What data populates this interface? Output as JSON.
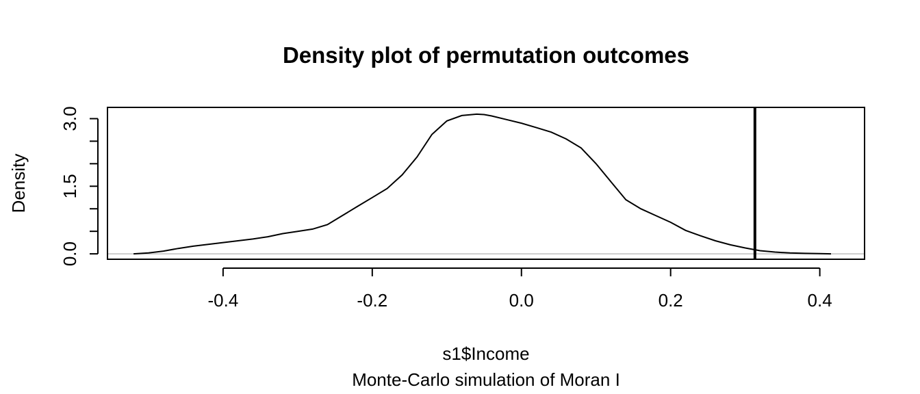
{
  "chart_data": {
    "type": "line",
    "title": "Density plot of permutation outcomes",
    "xlabel": "s1$Income",
    "sublabel": "Monte-Carlo simulation of Moran I",
    "ylabel": "Density",
    "xlim": [
      -0.555,
      0.46
    ],
    "ylim": [
      -0.12,
      3.25
    ],
    "x_ticks": [
      -0.4,
      -0.2,
      0.0,
      0.2,
      0.4
    ],
    "x_tick_labels": [
      "-0.4",
      "-0.2",
      "0.0",
      "0.2",
      "0.4"
    ],
    "y_ticks": [
      0.0,
      0.5,
      1.0,
      1.5,
      2.0,
      2.5,
      3.0
    ],
    "y_tick_labels": [
      "0.0",
      "",
      "",
      "1.5",
      "",
      "",
      "3.0"
    ],
    "observed_value": 0.313,
    "baseline": 0.0,
    "grid": false,
    "legend": "none",
    "series": [
      {
        "x": [
          -0.52,
          -0.5,
          -0.48,
          -0.46,
          -0.44,
          -0.42,
          -0.4,
          -0.38,
          -0.36,
          -0.34,
          -0.32,
          -0.3,
          -0.28,
          -0.26,
          -0.24,
          -0.22,
          -0.2,
          -0.18,
          -0.16,
          -0.14,
          -0.12,
          -0.1,
          -0.08,
          -0.06,
          -0.05,
          -0.04,
          -0.02,
          0.0,
          0.02,
          0.04,
          0.06,
          0.08,
          0.1,
          0.12,
          0.14,
          0.16,
          0.18,
          0.2,
          0.22,
          0.24,
          0.26,
          0.28,
          0.3,
          0.32,
          0.34,
          0.36,
          0.38,
          0.4,
          0.415
        ],
        "y": [
          0.0,
          0.02,
          0.06,
          0.12,
          0.17,
          0.21,
          0.25,
          0.29,
          0.33,
          0.38,
          0.45,
          0.5,
          0.55,
          0.65,
          0.85,
          1.05,
          1.25,
          1.45,
          1.75,
          2.15,
          2.65,
          2.95,
          3.07,
          3.1,
          3.09,
          3.06,
          2.98,
          2.9,
          2.8,
          2.7,
          2.55,
          2.35,
          2.0,
          1.6,
          1.2,
          1.0,
          0.85,
          0.7,
          0.52,
          0.4,
          0.29,
          0.2,
          0.13,
          0.07,
          0.04,
          0.02,
          0.01,
          0.005,
          0.0
        ]
      }
    ]
  }
}
